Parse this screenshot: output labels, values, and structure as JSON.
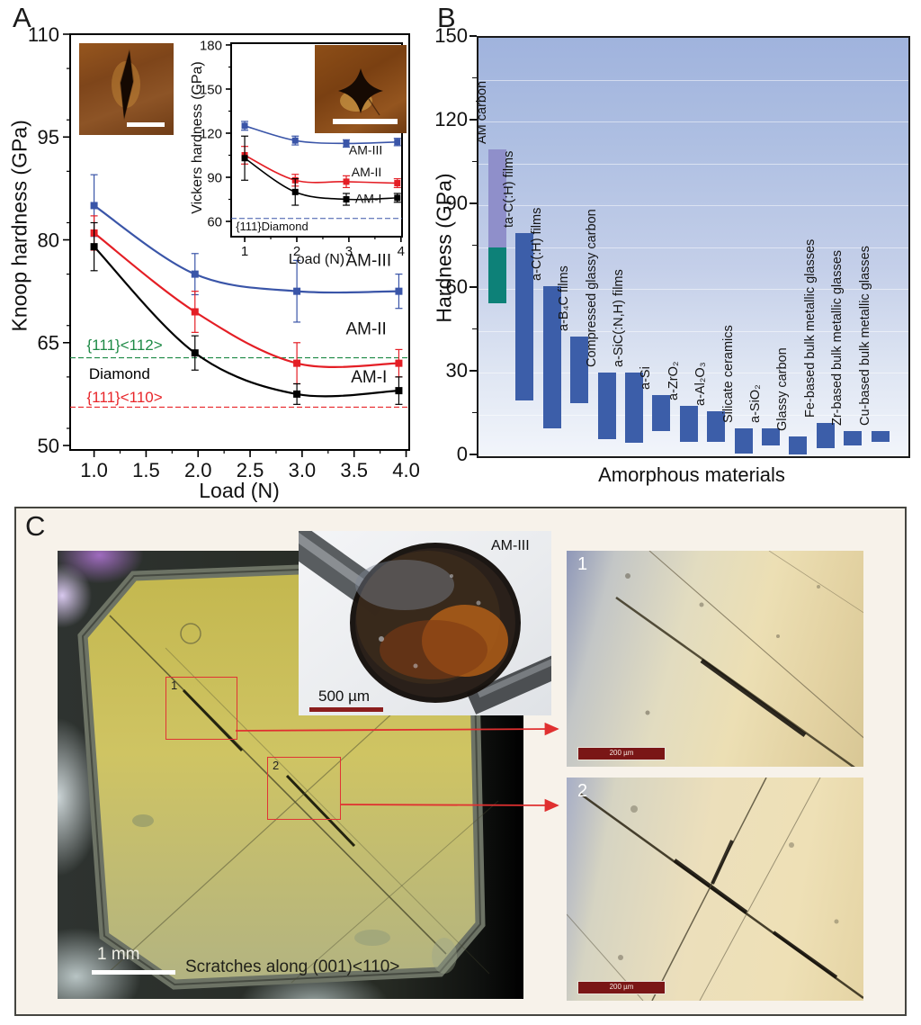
{
  "panels": {
    "a": {
      "label": "A"
    },
    "b": {
      "label": "B"
    },
    "c": {
      "label": "C"
    }
  },
  "panel_c": {
    "inset_label": "AM-III",
    "inset_scale_label": "500 µm",
    "box1_label": "1",
    "box2_label": "2",
    "img1_label": "1",
    "img2_label": "2",
    "img1_scale_label": "200 µm",
    "img2_scale_label": "200 µm",
    "sample_scale_label": "1 mm",
    "scratches_caption": "Scratches along (001)<110>"
  },
  "chart_data": [
    {
      "id": "knoop",
      "type": "line",
      "title": "",
      "xlabel": "Load (N)",
      "ylabel": "Knoop hardness (GPa)",
      "xlim": [
        0.77,
        4.03
      ],
      "ylim": [
        49.35,
        110
      ],
      "xticks": [
        1.0,
        1.5,
        2.0,
        2.5,
        3.0,
        3.5,
        4.0
      ],
      "yticks": [
        50,
        65,
        80,
        95,
        110
      ],
      "grid": false,
      "x": [
        1.0,
        1.97,
        2.95,
        3.93
      ],
      "series": [
        {
          "name": "AM-III",
          "color": "#3a55a8",
          "values": [
            85,
            75,
            72.5,
            72.5
          ],
          "err": [
            4.5,
            3,
            4.5,
            2.5
          ],
          "label_xy": [
            3.42,
            76.2
          ]
        },
        {
          "name": "AM-II",
          "color": "#e41e25",
          "values": [
            81,
            69.5,
            62,
            62
          ],
          "err": [
            2.5,
            3,
            3,
            2
          ],
          "label_xy": [
            3.42,
            66.2
          ]
        },
        {
          "name": "AM-I",
          "color": "#000000",
          "values": [
            79,
            63.5,
            57.5,
            58
          ],
          "err": [
            3.5,
            2.5,
            1.5,
            2
          ],
          "label_xy": [
            3.47,
            59.2
          ]
        }
      ],
      "reflines": [
        {
          "value": 62.8,
          "color": "#1e8a46"
        },
        {
          "value": 55.6,
          "color": "#e8262a"
        }
      ],
      "annotations": [
        {
          "text": "{111}<112>",
          "xy": [
            0.93,
            63.9
          ],
          "color": "#1e8a46",
          "size": 17
        },
        {
          "text": "Diamond",
          "xy": [
            0.95,
            59.7
          ],
          "color": "#000000",
          "size": 17
        },
        {
          "text": "{111}<110>",
          "xy": [
            0.93,
            56.3
          ],
          "color": "#e8262a",
          "size": 17
        }
      ]
    },
    {
      "id": "vickers",
      "type": "line",
      "title": "",
      "xlabel": "Load (N)",
      "ylabel": "Vickers hardness (GPa)",
      "xlim": [
        0.74,
        4.02
      ],
      "ylim": [
        49.6,
        181.2
      ],
      "xticks": [
        1,
        2,
        3,
        4
      ],
      "yticks": [
        60,
        90,
        120,
        150,
        180
      ],
      "grid": false,
      "x": [
        1.0,
        1.97,
        2.95,
        3.93
      ],
      "series": [
        {
          "name": "AM-III",
          "color": "#3a55a8",
          "values": [
            125,
            115,
            113,
            114
          ],
          "err": [
            3,
            3,
            2.5,
            2.5
          ],
          "label_xy": [
            3.0,
            105.5
          ]
        },
        {
          "name": "AM-II",
          "color": "#e41e25",
          "values": [
            105,
            88,
            87,
            86
          ],
          "err": [
            6,
            4,
            4,
            3
          ],
          "label_xy": [
            3.05,
            90.5
          ]
        },
        {
          "name": "AM-I",
          "color": "#000000",
          "values": [
            103,
            80,
            75,
            76
          ],
          "err": [
            15,
            9,
            4,
            3
          ],
          "label_xy": [
            3.12,
            72.5
          ]
        }
      ],
      "reflines": [
        {
          "value": 62,
          "color": "#3a55a8"
        }
      ],
      "annotations": [
        {
          "text": "{111}Diamond",
          "xy": [
            0.83,
            53.8
          ],
          "color": "#111111",
          "size": 13
        }
      ]
    },
    {
      "id": "amorphous",
      "type": "bar",
      "title": "",
      "xlabel": "Amorphous materials",
      "ylabel": "Hardness (GPa)",
      "ylim": [
        0,
        150
      ],
      "yticks": [
        0,
        30,
        60,
        90,
        120,
        150
      ],
      "grid_interval": 15,
      "bar_color": "#3c5ea9",
      "bars": [
        {
          "label": "AM carbon",
          "segments": [
            {
              "from": 75,
              "to": 110,
              "color": "#8f8fca"
            },
            {
              "from": 55,
              "to": 75,
              "color": "#0d8178"
            }
          ]
        },
        {
          "label": "ta-C(:H) films",
          "from": 20,
          "to": 80
        },
        {
          "label": "a-C(:H) films",
          "from": 10,
          "to": 61
        },
        {
          "label": "a-B₄C films",
          "from": 19,
          "to": 43
        },
        {
          "label": "Compressed glassy carbon",
          "from": 6,
          "to": 30
        },
        {
          "label": "a-SiC(:N,H) films",
          "from": 5,
          "to": 30
        },
        {
          "label": "a-Si",
          "from": 9,
          "to": 22
        },
        {
          "label": "a-ZrO₂",
          "from": 5,
          "to": 18
        },
        {
          "label": "a-Al₂O₃",
          "from": 5,
          "to": 16
        },
        {
          "label": "Silicate ceramics",
          "from": 1,
          "to": 10
        },
        {
          "label": "a-SiO₂",
          "from": 4,
          "to": 10
        },
        {
          "label": "Glassy carbon",
          "from": 0.5,
          "to": 7
        },
        {
          "label": "Fe-based bulk metallic glasses",
          "from": 3,
          "to": 12
        },
        {
          "label": "Zr-based bulk metallic glasses",
          "from": 4,
          "to": 9
        },
        {
          "label": "Cu-based bulk metallic glasses",
          "from": 5,
          "to": 9
        }
      ]
    }
  ]
}
